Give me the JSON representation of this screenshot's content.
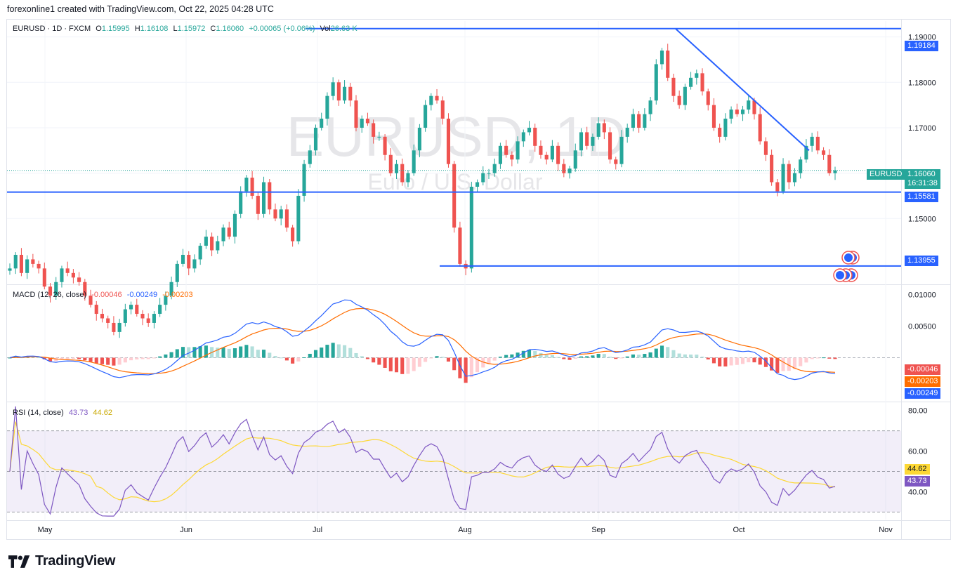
{
  "header": {
    "text": "forexonline1 created with TradingView.com, Oct 22, 2025 04:28 UTC"
  },
  "symbol": {
    "title": "EURUSD · 1D · FXCM",
    "o_label": "O",
    "o": "1.15995",
    "h_label": "H",
    "h": "1.16108",
    "l_label": "L",
    "l": "1.15972",
    "c_label": "C",
    "c": "1.16060",
    "change": "+0.00065 (+0.06%)",
    "vol_label": "Vol",
    "vol": "26.63 K",
    "watermark": "EURUSD, 1D",
    "watermark_sub": "Euro / U.S. Dollar",
    "tag_label": "EURUSD",
    "tag_price": "1.16060",
    "tag_countdown": "16:31:38"
  },
  "colors": {
    "up": "#26a69a",
    "down": "#ef5350",
    "line": "#2962ff",
    "macd": "#2962ff",
    "signal": "#ff6d00",
    "rsi": "#7e57c2",
    "rsi_ma": "#fdd835"
  },
  "macd_legend": {
    "label": "MACD (12, 26, close)",
    "hist": "-0.00046",
    "macd": "-0.00249",
    "signal": "-0.00203"
  },
  "rsi_legend": {
    "label": "RSI (14, close)",
    "rsi": "43.73",
    "ma": "44.62"
  },
  "price_tags": {
    "upper": "1.19184",
    "support": "1.15581",
    "lower": "1.13955"
  },
  "macd_tags": {
    "hist": "-0.00046",
    "signal": "-0.00203",
    "macd": "-0.00249"
  },
  "rsi_tags": {
    "ma": "44.62",
    "rsi": "43.73"
  },
  "brand": "TradingView",
  "chart_data": {
    "type": "candlestick",
    "symbol": "EURUSD",
    "x_ticks": [
      "May",
      "Jun",
      "Jul",
      "Aug",
      "Sep",
      "Oct",
      "Nov"
    ],
    "price_axis": {
      "ticks": [
        "1.19000",
        "1.18000",
        "1.17000",
        "1.16000",
        "1.15000"
      ],
      "ylim": [
        1.1355,
        1.1935
      ]
    },
    "horizontal_lines": [
      1.19184,
      1.15581,
      1.13955
    ],
    "current_price": 1.1606,
    "trendline": [
      {
        "x": "2025-09-17",
        "y": 1.1918
      },
      {
        "x": "2025-10-15",
        "y": 1.165
      }
    ],
    "closes_approx": [
      1.139,
      1.142,
      1.138,
      1.141,
      1.14,
      1.139,
      1.135,
      1.133,
      1.136,
      1.139,
      1.138,
      1.137,
      1.136,
      1.133,
      1.131,
      1.129,
      1.128,
      1.127,
      1.125,
      1.127,
      1.13,
      1.131,
      1.129,
      1.128,
      1.127,
      1.129,
      1.131,
      1.133,
      1.136,
      1.14,
      1.142,
      1.139,
      1.141,
      1.144,
      1.146,
      1.143,
      1.145,
      1.148,
      1.146,
      1.151,
      1.156,
      1.159,
      1.155,
      1.151,
      1.158,
      1.152,
      1.15,
      1.152,
      1.148,
      1.145,
      1.155,
      1.162,
      1.165,
      1.17,
      1.172,
      1.177,
      1.18,
      1.176,
      1.179,
      1.176,
      1.17,
      1.172,
      1.171,
      1.168,
      1.168,
      1.164,
      1.16,
      1.162,
      1.158,
      1.16,
      1.165,
      1.17,
      1.175,
      1.177,
      1.176,
      1.172,
      1.162,
      1.148,
      1.14,
      1.139,
      1.157,
      1.158,
      1.16,
      1.16,
      1.162,
      1.166,
      1.164,
      1.163,
      1.167,
      1.169,
      1.17,
      1.166,
      1.164,
      1.163,
      1.166,
      1.162,
      1.16,
      1.161,
      1.165,
      1.169,
      1.166,
      1.168,
      1.171,
      1.169,
      1.163,
      1.162,
      1.168,
      1.17,
      1.173,
      1.17,
      1.173,
      1.176,
      1.184,
      1.187,
      1.181,
      1.177,
      1.175,
      1.179,
      1.181,
      1.182,
      1.178,
      1.175,
      1.17,
      1.168,
      1.172,
      1.174,
      1.173,
      1.174,
      1.176,
      1.173,
      1.167,
      1.164,
      1.158,
      1.156,
      1.162,
      1.158,
      1.16,
      1.163,
      1.166,
      1.168,
      1.165,
      1.164,
      1.16,
      1.1606
    ],
    "macd": {
      "ticks": [
        "0.01000",
        "0.00500"
      ],
      "ylim": [
        -0.0065,
        0.0115
      ],
      "macd_last": -0.00249,
      "signal_last": -0.00203,
      "hist_last": -0.00046
    },
    "rsi": {
      "ticks": [
        "80.00",
        "60.00",
        "40.00"
      ],
      "ylim": [
        27,
        83
      ],
      "bands": [
        70,
        50,
        30
      ],
      "rsi_last": 43.73,
      "ma_last": 44.62
    }
  }
}
